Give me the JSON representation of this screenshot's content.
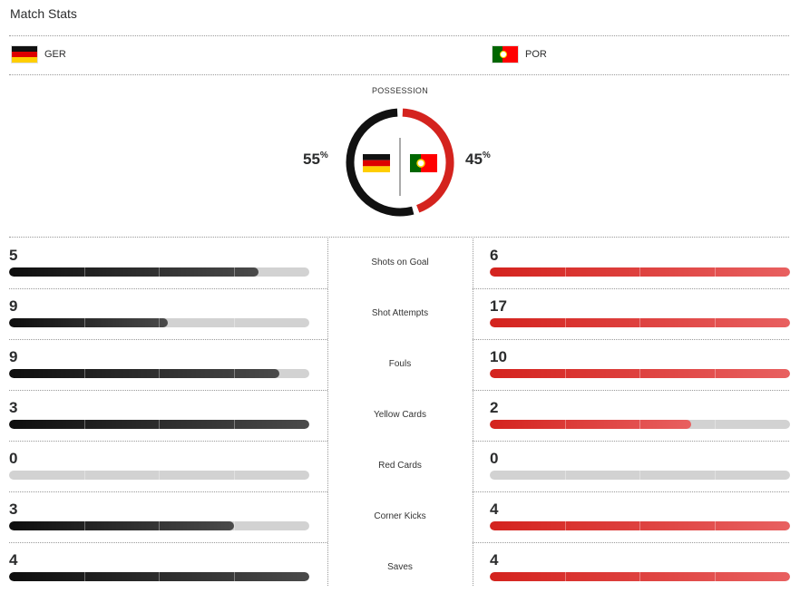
{
  "title": "Match Stats",
  "teams": {
    "home": {
      "abbr": "GER",
      "flag": "germany-flag-icon",
      "color": "#111111"
    },
    "away": {
      "abbr": "POR",
      "flag": "portugal-flag-icon",
      "color": "#d4231e"
    }
  },
  "possession": {
    "label": "POSSESSION",
    "home_value": "55",
    "away_value": "45",
    "unit": "%",
    "home_fraction": 0.55,
    "away_fraction": 0.45
  },
  "stats": [
    {
      "label": "Shots on Goal",
      "home": "5",
      "away": "6",
      "home_fill": 0.83,
      "away_fill": 1.0
    },
    {
      "label": "Shot Attempts",
      "home": "9",
      "away": "17",
      "home_fill": 0.53,
      "away_fill": 1.0
    },
    {
      "label": "Fouls",
      "home": "9",
      "away": "10",
      "home_fill": 0.9,
      "away_fill": 1.0
    },
    {
      "label": "Yellow Cards",
      "home": "3",
      "away": "2",
      "home_fill": 1.0,
      "away_fill": 0.67
    },
    {
      "label": "Red Cards",
      "home": "0",
      "away": "0",
      "home_fill": 0.0,
      "away_fill": 0.0
    },
    {
      "label": "Corner Kicks",
      "home": "3",
      "away": "4",
      "home_fill": 0.75,
      "away_fill": 1.0
    },
    {
      "label": "Saves",
      "home": "4",
      "away": "4",
      "home_fill": 1.0,
      "away_fill": 1.0
    }
  ]
}
